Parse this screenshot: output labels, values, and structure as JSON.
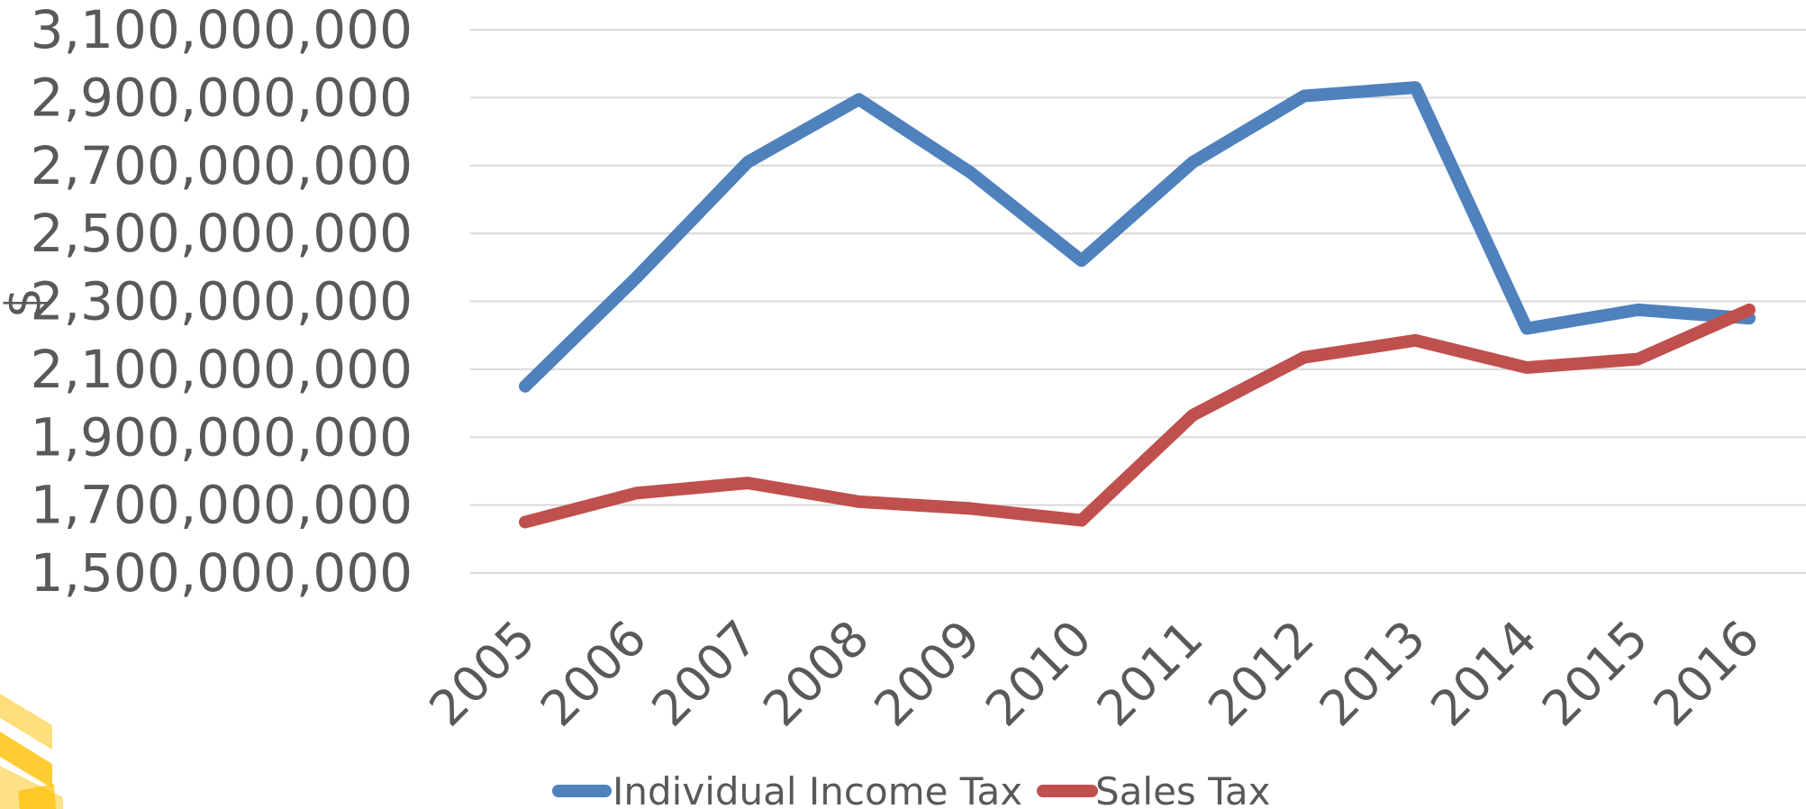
{
  "chart_data": {
    "type": "line",
    "title": "",
    "xlabel": "",
    "ylabel": "$",
    "categories": [
      "2005",
      "2006",
      "2007",
      "2008",
      "2009",
      "2010",
      "2011",
      "2012",
      "2013",
      "2014",
      "2015",
      "2016"
    ],
    "ylim": [
      1500000000,
      3100000000
    ],
    "yticks": [
      "1,500,000,000",
      "1,700,000,000",
      "1,900,000,000",
      "2,100,000,000",
      "2,300,000,000",
      "2,500,000,000",
      "2,700,000,000",
      "2,900,000,000",
      "3,100,000,000"
    ],
    "grid": true,
    "legend_position": "bottom",
    "series": [
      {
        "name": "Individual Income Tax",
        "color": "#4f81bd",
        "values": [
          2050000000,
          2370000000,
          2710000000,
          2895000000,
          2680000000,
          2420000000,
          2710000000,
          2905000000,
          2930000000,
          2220000000,
          2275000000,
          2250000000
        ]
      },
      {
        "name": "Sales Tax",
        "color": "#c0504d",
        "values": [
          1650000000,
          1735000000,
          1765000000,
          1710000000,
          1690000000,
          1655000000,
          1965000000,
          2135000000,
          2185000000,
          2105000000,
          2130000000,
          2275000000
        ]
      }
    ]
  }
}
